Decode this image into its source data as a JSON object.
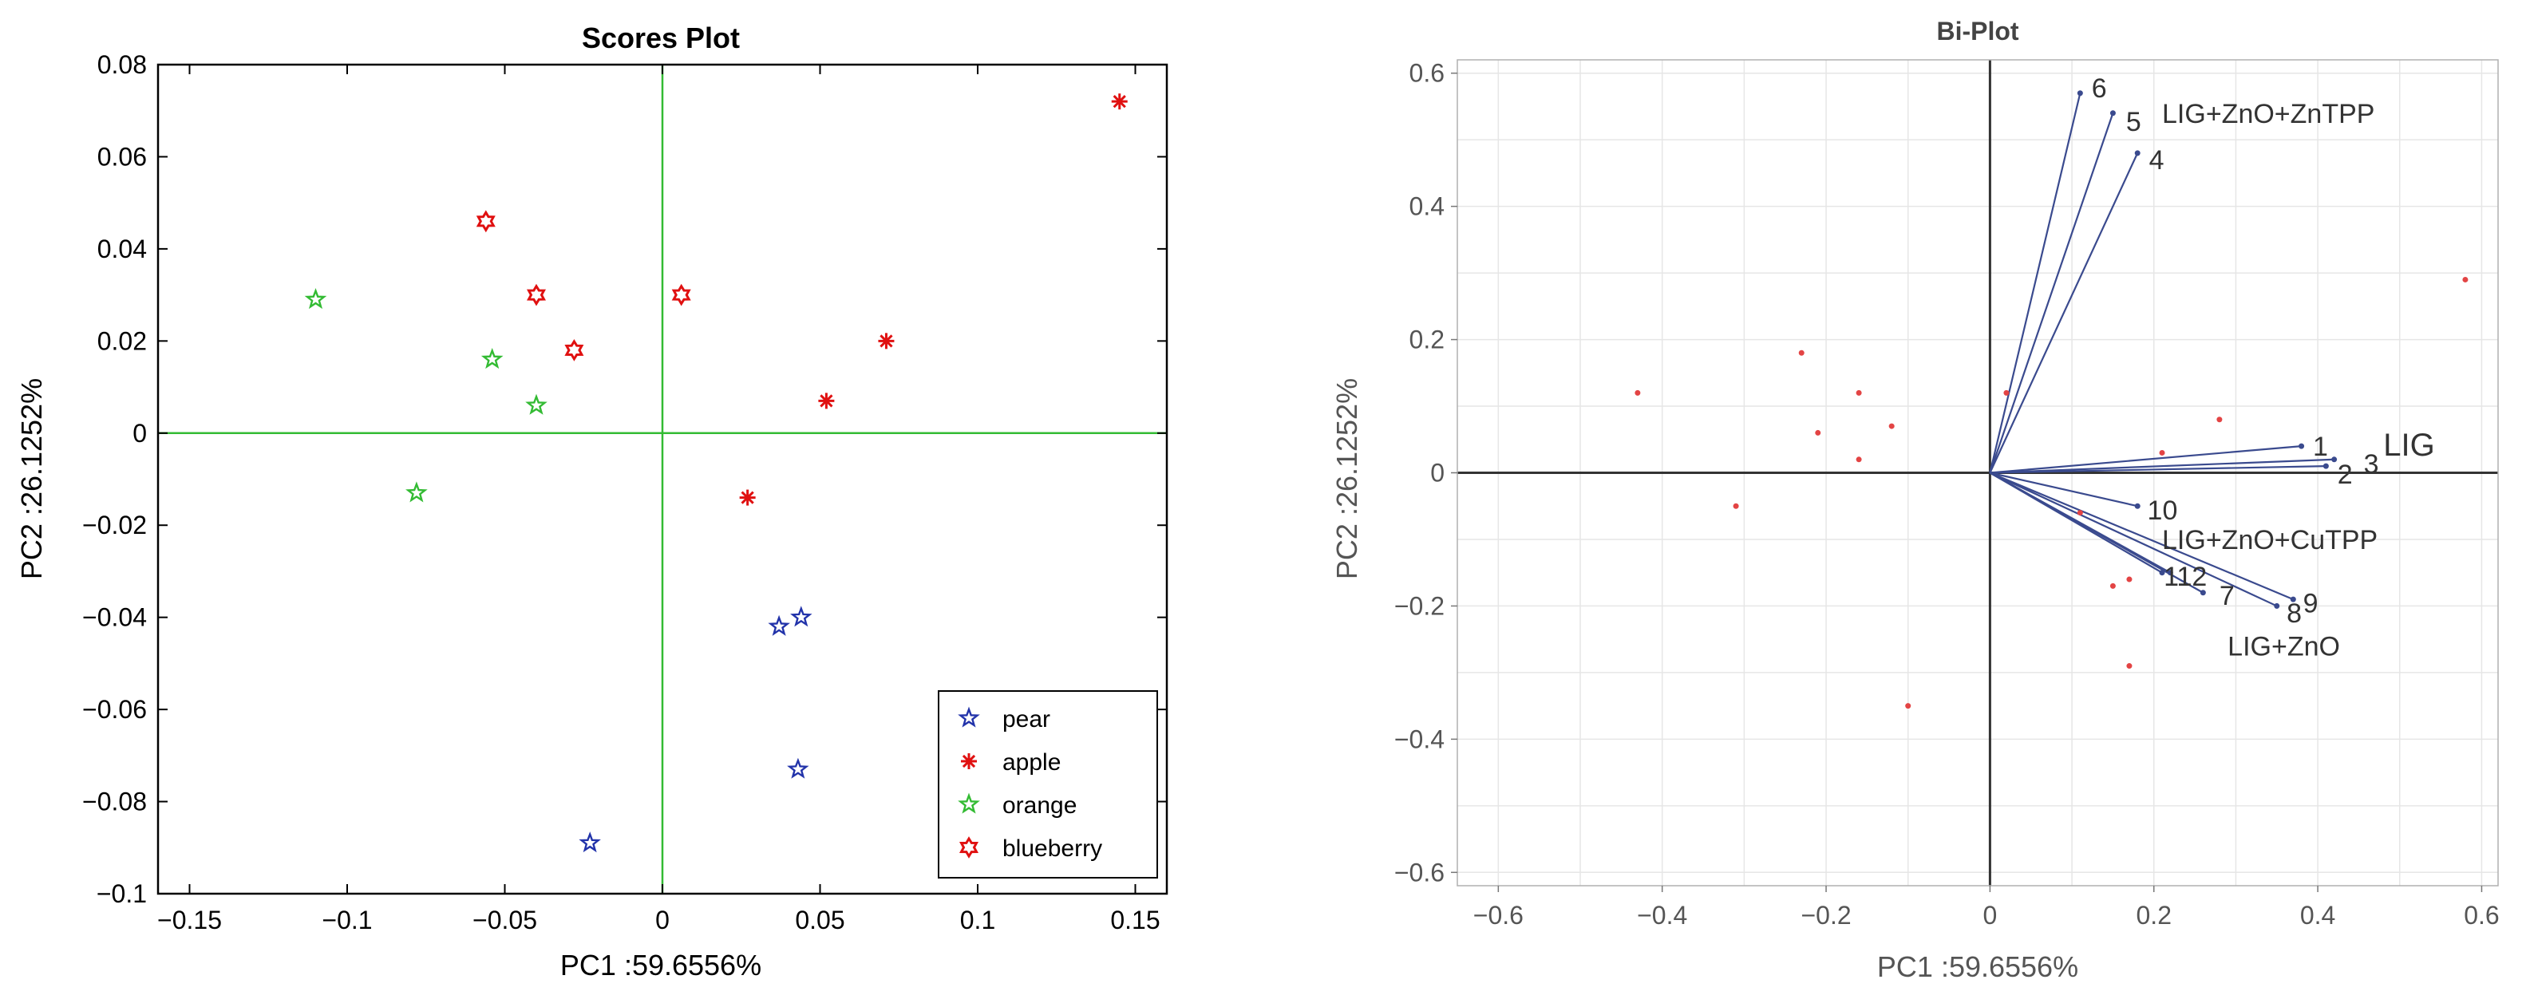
{
  "chart_data": [
    {
      "type": "scatter",
      "title": "Scores Plot",
      "xlabel": "PC1 :59.6556%",
      "ylabel": "PC2 :26.1252%",
      "xlim": [
        -0.16,
        0.16
      ],
      "ylim": [
        -0.1,
        0.08
      ],
      "xticks": [
        -0.15,
        -0.1,
        -0.05,
        0,
        0.05,
        0.1,
        0.15
      ],
      "xtick_labels": [
        "−0.15",
        "−0.1",
        "−0.05",
        "0",
        "0.05",
        "0.1",
        "0.15"
      ],
      "yticks": [
        -0.1,
        -0.08,
        -0.06,
        -0.04,
        -0.02,
        0,
        0.02,
        0.04,
        0.06,
        0.08
      ],
      "ytick_labels": [
        "−0.1",
        "−0.08",
        "−0.06",
        "−0.04",
        "−0.02",
        "0",
        "0.02",
        "0.04",
        "0.06",
        "0.08"
      ],
      "grid": false,
      "axis_lines_color": "#33bb33",
      "legend_position": "bottom-right",
      "series": [
        {
          "name": "pear",
          "marker": "star",
          "color": "#2233aa",
          "points": [
            [
              0.037,
              -0.042
            ],
            [
              0.044,
              -0.04
            ],
            [
              0.043,
              -0.073
            ],
            [
              -0.023,
              -0.089
            ]
          ]
        },
        {
          "name": "apple",
          "marker": "asterisk",
          "color": "#e01010",
          "points": [
            [
              0.145,
              0.072
            ],
            [
              0.071,
              0.02
            ],
            [
              0.052,
              0.007
            ],
            [
              0.027,
              -0.014
            ]
          ]
        },
        {
          "name": "orange",
          "marker": "star",
          "color": "#33bb33",
          "points": [
            [
              -0.11,
              0.029
            ],
            [
              -0.054,
              0.016
            ],
            [
              -0.04,
              0.006
            ],
            [
              -0.078,
              -0.013
            ]
          ]
        },
        {
          "name": "blueberry",
          "marker": "hexagram",
          "color": "#e01010",
          "points": [
            [
              -0.056,
              0.046
            ],
            [
              -0.04,
              0.03
            ],
            [
              -0.028,
              0.018
            ],
            [
              0.006,
              0.03
            ]
          ]
        }
      ]
    },
    {
      "type": "biplot",
      "title": "Bi-Plot",
      "xlabel": "PC1 :59.6556%",
      "ylabel": "PC2 :26.1252%",
      "xlim": [
        -0.65,
        0.62
      ],
      "ylim": [
        -0.62,
        0.62
      ],
      "xticks": [
        -0.6,
        -0.4,
        -0.2,
        0,
        0.2,
        0.4,
        0.6
      ],
      "xtick_labels": [
        "−0.6",
        "−0.4",
        "−0.2",
        "0",
        "0.2",
        "0.4",
        "0.6"
      ],
      "yticks": [
        -0.6,
        -0.4,
        -0.2,
        0,
        0.2,
        0.4,
        0.6
      ],
      "ytick_labels": [
        "−0.6",
        "−0.4",
        "−0.2",
        "0",
        "0.2",
        "0.4",
        "0.6"
      ],
      "grid": true,
      "vectors": [
        {
          "label": "1",
          "x": 0.38,
          "y": 0.04,
          "dx": 0.014,
          "dy": 0.0
        },
        {
          "label": "2",
          "x": 0.41,
          "y": 0.01,
          "dx": 0.014,
          "dy": -0.012
        },
        {
          "label": "3",
          "x": 0.42,
          "y": 0.02,
          "dx": 0.036,
          "dy": -0.006
        },
        {
          "label": "4",
          "x": 0.18,
          "y": 0.48,
          "dx": 0.014,
          "dy": -0.01
        },
        {
          "label": "5",
          "x": 0.15,
          "y": 0.54,
          "dx": 0.016,
          "dy": -0.012
        },
        {
          "label": "6",
          "x": 0.11,
          "y": 0.57,
          "dx": 0.014,
          "dy": 0.008
        },
        {
          "label": "7",
          "x": 0.26,
          "y": -0.18,
          "dx": 0.02,
          "dy": -0.004
        },
        {
          "label": "8",
          "x": 0.35,
          "y": -0.2,
          "dx": 0.012,
          "dy": -0.01
        },
        {
          "label": "9",
          "x": 0.37,
          "y": -0.19,
          "dx": 0.012,
          "dy": -0.005
        },
        {
          "label": "10",
          "x": 0.18,
          "y": -0.05,
          "dx": 0.012,
          "dy": -0.006
        },
        {
          "label": "11",
          "x": 0.22,
          "y": -0.15,
          "dx": -0.008,
          "dy": -0.005
        },
        {
          "label": "12",
          "x": 0.21,
          "y": -0.15,
          "dx": 0.018,
          "dy": -0.005
        }
      ],
      "group_labels": [
        {
          "text": "LIG+ZnO+ZnTPP",
          "x": 0.21,
          "y": 0.54
        },
        {
          "text": "LIG",
          "x": 0.48,
          "y": 0.04
        },
        {
          "text": "LIG+ZnO+CuTPP",
          "x": 0.21,
          "y": -0.1
        },
        {
          "text": "LIG+ZnO",
          "x": 0.29,
          "y": -0.26
        }
      ],
      "points": [
        [
          -0.43,
          0.12
        ],
        [
          -0.23,
          0.18
        ],
        [
          -0.16,
          0.12
        ],
        [
          -0.21,
          0.06
        ],
        [
          -0.12,
          0.07
        ],
        [
          -0.16,
          0.02
        ],
        [
          -0.31,
          -0.05
        ],
        [
          0.02,
          0.12
        ],
        [
          0.21,
          0.03
        ],
        [
          0.28,
          0.08
        ],
        [
          0.58,
          0.29
        ],
        [
          0.11,
          -0.06
        ],
        [
          0.15,
          -0.17
        ],
        [
          0.17,
          -0.16
        ],
        [
          0.17,
          -0.29
        ],
        [
          -0.1,
          -0.35
        ]
      ],
      "vector_color": "#3a4a8e",
      "point_color": "#e34444"
    }
  ],
  "colors": {
    "axis_frame": "#000000",
    "grid": "#e6e6e6",
    "biplot_axes": "#333333",
    "biplot_tick_text": "#555555"
  }
}
